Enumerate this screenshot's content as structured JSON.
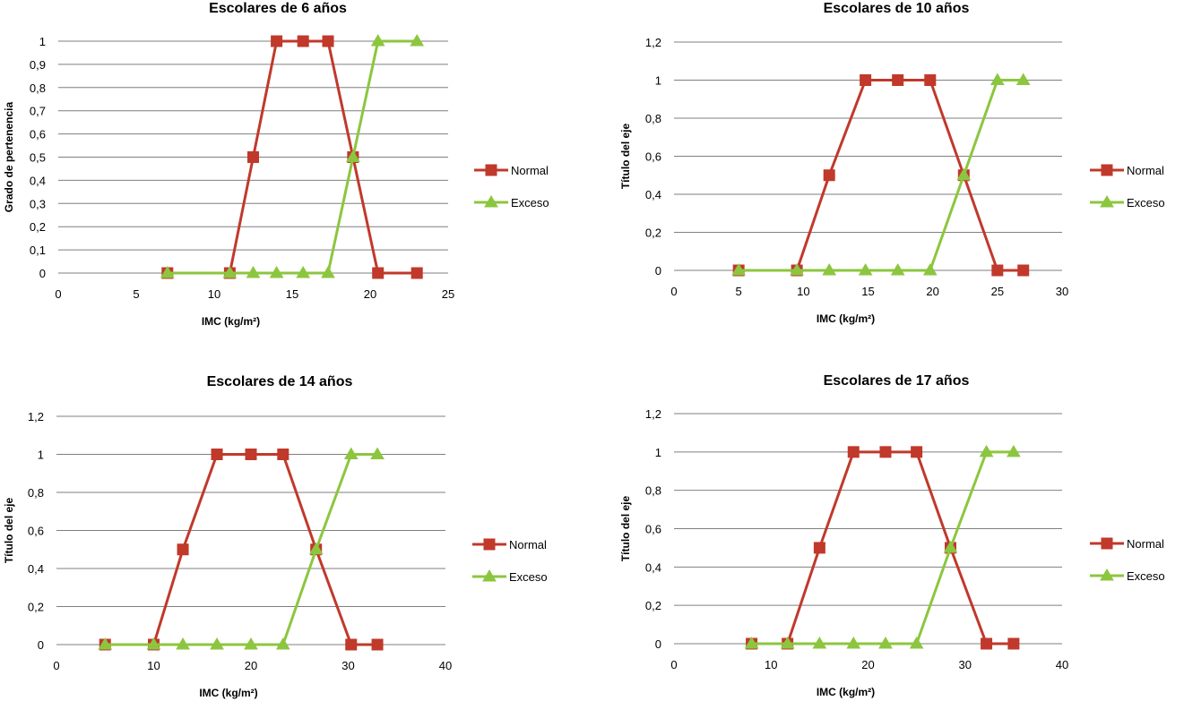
{
  "chart_data": [
    {
      "type": "line",
      "title": "Escolares de 6 años",
      "xlabel": "IMC (kg/m²)",
      "ylabel": "Grado de pertenencia",
      "xlim": [
        0,
        25
      ],
      "xticks": [
        0,
        5,
        10,
        15,
        20,
        25
      ],
      "xtick_labels": [
        "0",
        "5",
        "10",
        "15",
        "20",
        "25"
      ],
      "ylim": [
        0,
        1
      ],
      "yticks": [
        0,
        0.1,
        0.2,
        0.3,
        0.4,
        0.5,
        0.6,
        0.7,
        0.8,
        0.9,
        1
      ],
      "ytick_labels": [
        "0",
        "0,1",
        "0,2",
        "0,3",
        "0,4",
        "0,5",
        "0,6",
        "0,7",
        "0,8",
        "0,9",
        "1"
      ],
      "grid": true,
      "legend_position": "right",
      "series": [
        {
          "name": "Normal",
          "color": "#c0392b",
          "marker": "square",
          "x": [
            7,
            11,
            12.5,
            14,
            15.7,
            17.3,
            18.9,
            20.5,
            23
          ],
          "y": [
            0,
            0,
            0.5,
            1,
            1,
            1,
            0.5,
            0,
            0
          ]
        },
        {
          "name": "Exceso",
          "color": "#8cc63f",
          "marker": "triangle",
          "x": [
            7,
            11,
            12.5,
            14,
            15.7,
            17.3,
            18.9,
            20.5,
            23
          ],
          "y": [
            0,
            0,
            0,
            0,
            0,
            0,
            0.5,
            1,
            1
          ]
        }
      ]
    },
    {
      "type": "line",
      "title": "Escolares de 10 años",
      "xlabel": "IMC (kg/m²)",
      "ylabel": "Título del eje",
      "xlim": [
        0,
        30
      ],
      "xticks": [
        0,
        5,
        10,
        15,
        20,
        25,
        30
      ],
      "xtick_labels": [
        "0",
        "5",
        "10",
        "15",
        "20",
        "25",
        "30"
      ],
      "ylim": [
        0,
        1.2
      ],
      "yticks": [
        0,
        0.2,
        0.4,
        0.6,
        0.8,
        1,
        1.2
      ],
      "ytick_labels": [
        "0",
        "0,2",
        "0,4",
        "0,6",
        "0,8",
        "1",
        "1,2"
      ],
      "grid": true,
      "legend_position": "right",
      "series": [
        {
          "name": "Normal",
          "color": "#c0392b",
          "marker": "square",
          "x": [
            5,
            9.5,
            12,
            14.8,
            17.3,
            19.8,
            22.4,
            25,
            27
          ],
          "y": [
            0,
            0,
            0.5,
            1,
            1,
            1,
            0.5,
            0,
            0
          ]
        },
        {
          "name": "Exceso",
          "color": "#8cc63f",
          "marker": "triangle",
          "x": [
            5,
            9.5,
            12,
            14.8,
            17.3,
            19.8,
            22.4,
            25,
            27
          ],
          "y": [
            0,
            0,
            0,
            0,
            0,
            0,
            0.5,
            1,
            1
          ]
        }
      ]
    },
    {
      "type": "line",
      "title": "Escolares de 14 años",
      "xlabel": "IMC (kg/m²)",
      "ylabel": "Título del eje",
      "xlim": [
        0,
        40
      ],
      "xticks": [
        0,
        10,
        20,
        30,
        40
      ],
      "xtick_labels": [
        "0",
        "10",
        "20",
        "30",
        "40"
      ],
      "ylim": [
        0,
        1.2
      ],
      "yticks": [
        0,
        0.2,
        0.4,
        0.6,
        0.8,
        1,
        1.2
      ],
      "ytick_labels": [
        "0",
        "0,2",
        "0,4",
        "0,6",
        "0,8",
        "1",
        "1,2"
      ],
      "grid": true,
      "legend_position": "right",
      "series": [
        {
          "name": "Normal",
          "color": "#c0392b",
          "marker": "square",
          "x": [
            5,
            10,
            13,
            16.5,
            20,
            23.3,
            26.7,
            30.3,
            33
          ],
          "y": [
            0,
            0,
            0.5,
            1,
            1,
            1,
            0.5,
            0,
            0
          ]
        },
        {
          "name": "Exceso",
          "color": "#8cc63f",
          "marker": "triangle",
          "x": [
            5,
            10,
            13,
            16.5,
            20,
            23.3,
            26.7,
            30.3,
            33
          ],
          "y": [
            0,
            0,
            0,
            0,
            0,
            0,
            0.5,
            1,
            1
          ]
        }
      ]
    },
    {
      "type": "line",
      "title": "Escolares de 17 años",
      "xlabel": "IMC (kg/m²)",
      "ylabel": "Título del eje",
      "xlim": [
        0,
        40
      ],
      "xticks": [
        0,
        10,
        20,
        30,
        40
      ],
      "xtick_labels": [
        "0",
        "10",
        "20",
        "30",
        "40"
      ],
      "ylim": [
        0,
        1.2
      ],
      "yticks": [
        0,
        0.2,
        0.4,
        0.6,
        0.8,
        1,
        1.2
      ],
      "ytick_labels": [
        "0",
        "0,2",
        "0,4",
        "0,6",
        "0,8",
        "1",
        "1,2"
      ],
      "grid": true,
      "legend_position": "right",
      "series": [
        {
          "name": "Normal",
          "color": "#c0392b",
          "marker": "square",
          "x": [
            8,
            11.7,
            15,
            18.5,
            21.8,
            25,
            28.5,
            32.2,
            35
          ],
          "y": [
            0,
            0,
            0.5,
            1,
            1,
            1,
            0.5,
            0,
            0
          ]
        },
        {
          "name": "Exceso",
          "color": "#8cc63f",
          "marker": "triangle",
          "x": [
            8,
            11.7,
            15,
            18.5,
            21.8,
            25,
            28.5,
            32.2,
            35
          ],
          "y": [
            0,
            0,
            0,
            0,
            0,
            0,
            0.5,
            1,
            1
          ]
        }
      ]
    }
  ]
}
